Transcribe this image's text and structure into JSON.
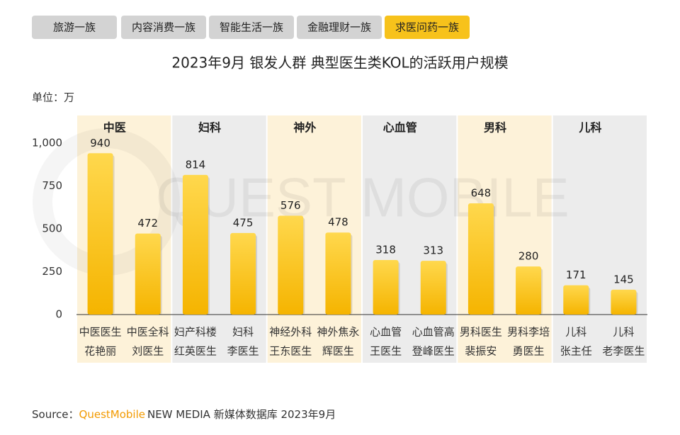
{
  "tabs": [
    "旅游一族",
    "内容消费一族",
    "智能生活一族",
    "金融理财一族",
    "求医问药一族"
  ],
  "active_tab": 4,
  "unit": "单位：万",
  "watermark": "QUEST MOBILE",
  "source": {
    "label": "Source：",
    "brand": "QuestMobile",
    "text": "NEW MEDIA 新媒体数据库 2023年9月"
  },
  "chart_data": {
    "type": "bar",
    "title": "2023年9月 银发人群 典型医生类KOL的活跃用户规模",
    "ylim": [
      0,
      1160
    ],
    "yticks": [
      0,
      250,
      500,
      750,
      {
        "value": 1000,
        "label": "1,000"
      }
    ],
    "color": [
      "#ffd84d",
      "#f5b400"
    ],
    "groups": [
      {
        "name": "中医",
        "categories": [
          [
            "中医医生",
            "花艳丽"
          ],
          [
            "中医全科",
            "刘医生"
          ]
        ],
        "values": [
          940,
          472
        ]
      },
      {
        "name": "妇科",
        "categories": [
          [
            "妇产科楼",
            "红英医生"
          ],
          [
            "妇科",
            "李医生"
          ]
        ],
        "values": [
          814,
          475
        ]
      },
      {
        "name": "神外",
        "categories": [
          [
            "神经外科",
            "王东医生"
          ],
          [
            "神外焦永",
            "辉医生"
          ]
        ],
        "values": [
          576,
          478
        ]
      },
      {
        "name": "心血管",
        "categories": [
          [
            "心血管",
            "王医生"
          ],
          [
            "心血管高",
            "登峰医生"
          ]
        ],
        "values": [
          318,
          313
        ]
      },
      {
        "name": "男科",
        "categories": [
          [
            "男科医生",
            "裴振安"
          ],
          [
            "男科李培",
            "勇医生"
          ]
        ],
        "values": [
          648,
          280
        ]
      },
      {
        "name": "儿科",
        "categories": [
          [
            "儿科",
            "张主任"
          ],
          [
            "儿科",
            "老李医生"
          ]
        ],
        "values": [
          171,
          145
        ]
      }
    ]
  }
}
